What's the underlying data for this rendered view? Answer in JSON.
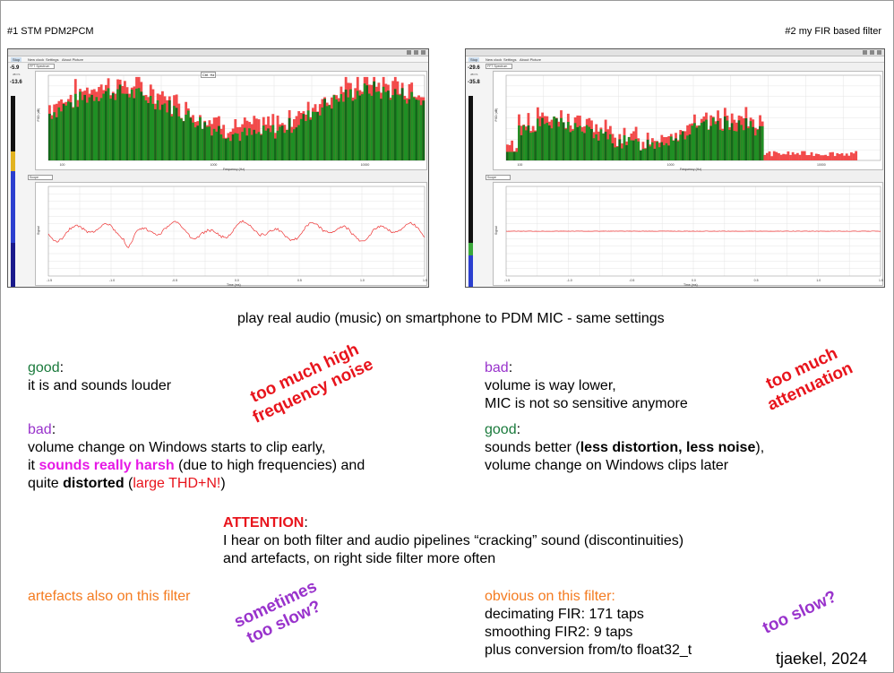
{
  "captions": {
    "left": "#1 STM PDM2PCM",
    "right": "#2 my FIR based filter"
  },
  "screens": {
    "left": {
      "toolbar": [
        "Stop",
        "New clock",
        "Settings",
        "About Picture"
      ],
      "panel_top": "FFT Spectrum",
      "panel_bottom": "Scope",
      "level_top": "-5.9",
      "level_bottom": "-13.6",
      "freq_axis": "Frequency (Hz)",
      "time_axis": "Time (ms)",
      "fft_ylabel": "PSD (dB)",
      "scope_ylabel": "Signal",
      "x_ticks": [
        "100",
        "1000",
        "10000"
      ],
      "scope_x_ticks": [
        "-1.5",
        "-1.0",
        "-0.5",
        "0.0",
        "0.5",
        "1.0",
        "1.5"
      ],
      "cursor_label": "Ctrl. Hz"
    },
    "right": {
      "toolbar": [
        "Stop",
        "New clock",
        "Settings",
        "About Picture"
      ],
      "panel_top": "FFT Spectrum",
      "panel_bottom": "Scope",
      "level_top": "-29.6",
      "level_bottom": "-35.8",
      "freq_axis": "Frequency (Hz)",
      "time_axis": "Time (ms)",
      "fft_ylabel": "PSD (dB)",
      "scope_ylabel": "Signal",
      "x_ticks": [
        "100",
        "1000",
        "10000"
      ],
      "scope_x_ticks": [
        "-1.5",
        "-1.0",
        "-0.5",
        "0.0",
        "0.5",
        "1.0",
        "1.5"
      ]
    }
  },
  "headline": "play real audio (music) on smartphone to PDM MIC - same settings",
  "left_notes": {
    "good_label": "good",
    "good_line": "it is and sounds louder",
    "bad_label": "bad",
    "bad_line1": "volume change on Windows starts to clip early,",
    "bad_line2_a": "it ",
    "bad_line2_b": "sounds really harsh",
    "bad_line2_c": " (due to high frequencies) and",
    "bad_line3_a": "quite ",
    "bad_line3_b": "distorted",
    "bad_line3_c": " (",
    "bad_line3_d": "large THD+N!",
    "bad_line3_e": ")",
    "stamp": [
      "too much high",
      "frequency noise"
    ]
  },
  "right_notes": {
    "bad_label": "bad",
    "bad_line1": "volume is way lower,",
    "bad_line2": "MIC is not so sensitive anymore",
    "good_label": "good",
    "good_line1_a": "sounds better (",
    "good_line1_b": "less distortion, less noise",
    "good_line1_c": "),",
    "good_line2": "volume change on Windows clips later",
    "stamp": [
      "too much",
      "attenuation"
    ]
  },
  "attention": {
    "label": "ATTENTION",
    "line1": "I hear on both filter and audio pipelines “cracking” sound (discontinuities)",
    "line2": "and artefacts, on right side filter more often"
  },
  "bottom_left": {
    "text": "artefacts also on this filter",
    "stamp": [
      "sometimes",
      "too slow?"
    ]
  },
  "bottom_right": {
    "heading": "obvious on this filter:",
    "line1": "decimating FIR: 171 taps",
    "line2": "smoothing FIR2: 9 taps",
    "line3": "plus conversion from/to float32_t",
    "stamp": "too slow?"
  },
  "signature": "tjaekel, 2024",
  "colors": {
    "good": "#1a7a3c",
    "bad": "#9933cc",
    "alert": "#e8141c",
    "emph": "#e619e6",
    "note": "#f47b20"
  }
}
